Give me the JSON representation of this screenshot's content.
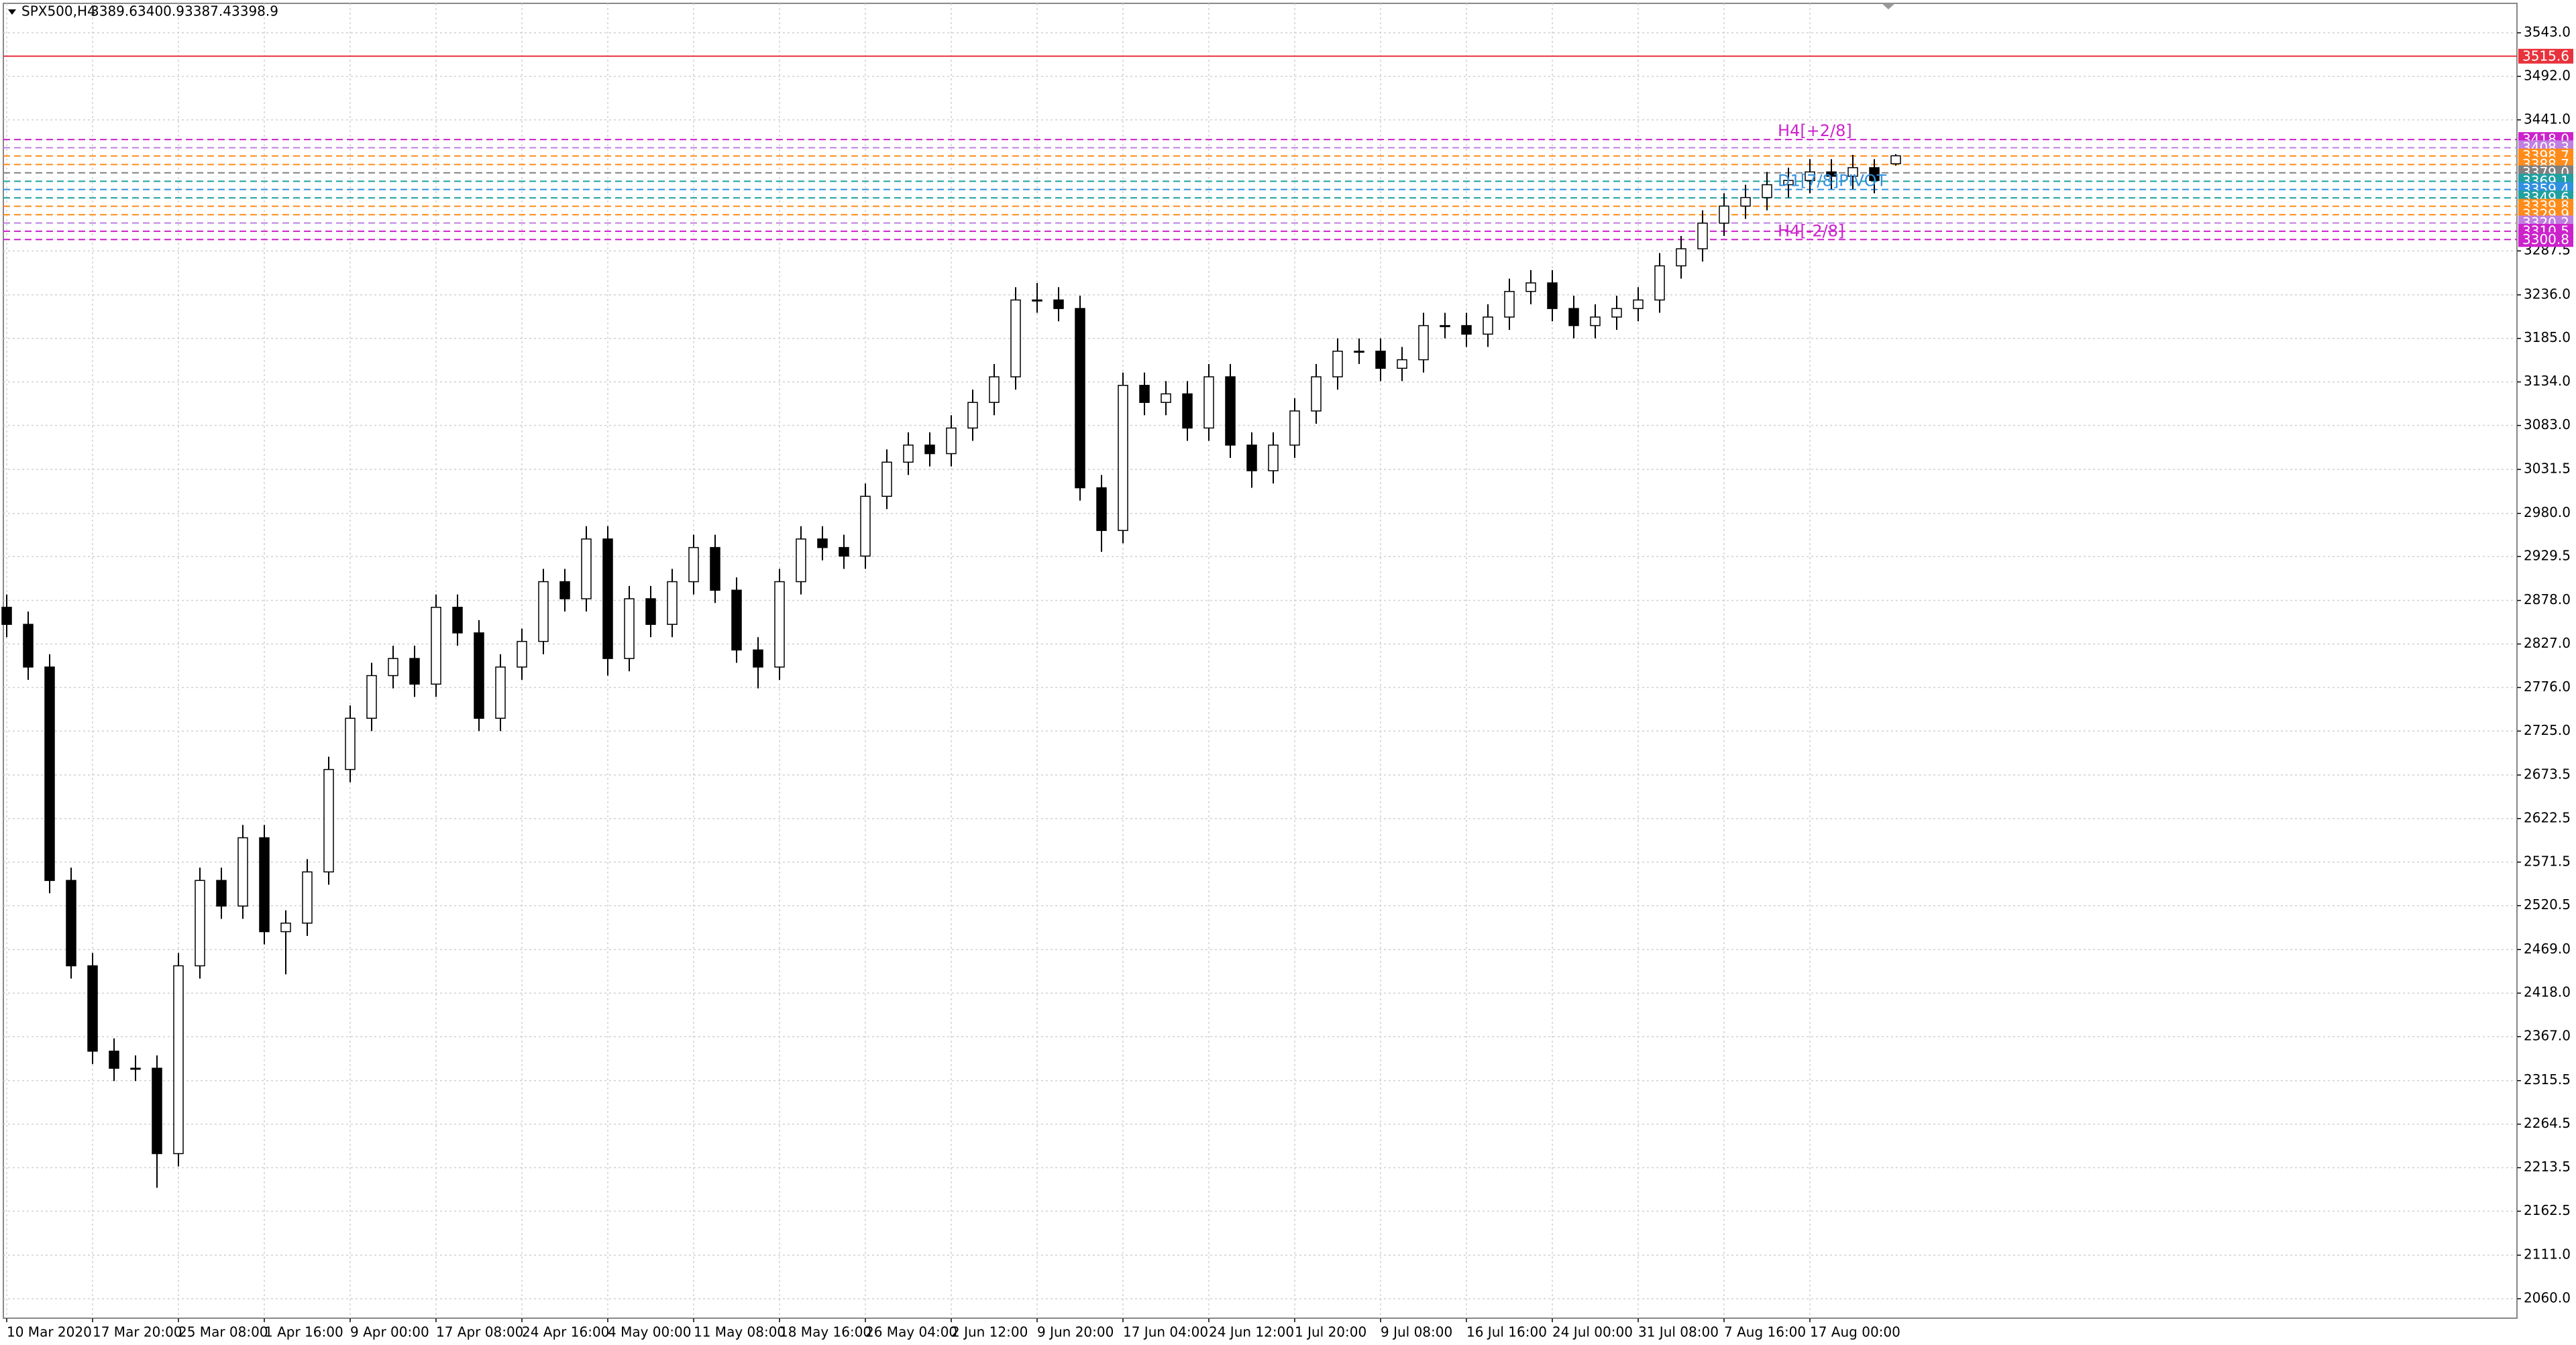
{
  "chart_data": {
    "type": "candlestick",
    "title": "SPX500,H4",
    "up_color": "#ffffff",
    "down_color": "#000000",
    "edge_color": "#000000",
    "grid": true,
    "categories": [
      "10 Mar 2020",
      null,
      null,
      null,
      "17 Mar 20:00",
      null,
      null,
      null,
      "25 Mar 08:00",
      null,
      null,
      null,
      "1 Apr 16:00",
      null,
      null,
      null,
      "9 Apr 00:00",
      null,
      null,
      null,
      "17 Apr 08:00",
      null,
      null,
      null,
      "24 Apr 16:00",
      null,
      null,
      null,
      "4 May 00:00",
      null,
      null,
      null,
      "11 May 08:00",
      null,
      null,
      null,
      "18 May 16:00",
      null,
      null,
      null,
      "26 May 04:00",
      null,
      null,
      null,
      "2 Jun 12:00",
      null,
      null,
      null,
      "9 Jun 20:00",
      null,
      null,
      null,
      "17 Jun 04:00",
      null,
      null,
      null,
      "24 Jun 12:00",
      null,
      null,
      null,
      "1 Jul 20:00",
      null,
      null,
      null,
      "9 Jul 08:00",
      null,
      null,
      null,
      "16 Jul 16:00",
      null,
      null,
      null,
      "24 Jul 00:00",
      null,
      null,
      null,
      "31 Jul 08:00",
      null,
      null,
      null,
      "7 Aug 16:00",
      null,
      null,
      null,
      "17 Aug 00:00",
      null,
      null,
      null,
      null
    ],
    "open": [
      2870,
      2850,
      2800,
      2550,
      2450,
      2350,
      2330,
      2330,
      2230,
      2450,
      2550,
      2520,
      2600,
      2490,
      2500,
      2560,
      2680,
      2740,
      2790,
      2810,
      2780,
      2870,
      2840,
      2740,
      2800,
      2830,
      2900,
      2880,
      2950,
      2810,
      2880,
      2850,
      2900,
      2940,
      2890,
      2820,
      2800,
      2900,
      2950,
      2940,
      2930,
      3000,
      3040,
      3060,
      3050,
      3080,
      3110,
      3140,
      3230,
      3230,
      3220,
      3010,
      2960,
      3130,
      3110,
      3120,
      3080,
      3140,
      3060,
      3030,
      3060,
      3100,
      3140,
      3170,
      3170,
      3150,
      3160,
      3200,
      3200,
      3190,
      3210,
      3240,
      3250,
      3220,
      3200,
      3210,
      3220,
      3230,
      3270,
      3290,
      3320,
      3340,
      3350,
      3365,
      3370,
      3380,
      3375,
      3385,
      3389.6
    ],
    "high": [
      2885,
      2865,
      2815,
      2565,
      2465,
      2365,
      2345,
      2345,
      2465,
      2565,
      2565,
      2615,
      2615,
      2515,
      2575,
      2695,
      2755,
      2805,
      2825,
      2825,
      2885,
      2885,
      2855,
      2815,
      2845,
      2915,
      2915,
      2965,
      2965,
      2895,
      2895,
      2915,
      2955,
      2955,
      2905,
      2835,
      2915,
      2965,
      2965,
      2955,
      3015,
      3055,
      3075,
      3075,
      3095,
      3125,
      3155,
      3245,
      3250,
      3245,
      3235,
      3025,
      3145,
      3145,
      3135,
      3135,
      3155,
      3155,
      3075,
      3075,
      3115,
      3155,
      3185,
      3185,
      3185,
      3175,
      3215,
      3215,
      3215,
      3225,
      3255,
      3265,
      3265,
      3235,
      3225,
      3235,
      3245,
      3285,
      3305,
      3335,
      3355,
      3365,
      3380,
      3385,
      3395,
      3395,
      3400,
      3395,
      3400.9
    ],
    "low": [
      2835,
      2785,
      2535,
      2435,
      2335,
      2315,
      2315,
      2190,
      2215,
      2435,
      2505,
      2505,
      2475,
      2440,
      2485,
      2545,
      2665,
      2725,
      2775,
      2765,
      2765,
      2825,
      2725,
      2725,
      2785,
      2815,
      2865,
      2865,
      2790,
      2795,
      2835,
      2835,
      2885,
      2875,
      2805,
      2775,
      2785,
      2885,
      2925,
      2915,
      2915,
      2985,
      3025,
      3035,
      3035,
      3065,
      3095,
      3125,
      3215,
      3205,
      2995,
      2935,
      2945,
      3095,
      3095,
      3065,
      3065,
      3045,
      3010,
      3015,
      3045,
      3085,
      3125,
      3155,
      3135,
      3135,
      3145,
      3185,
      3175,
      3175,
      3195,
      3225,
      3205,
      3185,
      3185,
      3195,
      3205,
      3215,
      3255,
      3275,
      3305,
      3325,
      3335,
      3350,
      3355,
      3360,
      3360,
      3355,
      3387.4
    ],
    "close": [
      2850,
      2800,
      2550,
      2450,
      2350,
      2330,
      2330,
      2230,
      2450,
      2550,
      2520,
      2600,
      2490,
      2500,
      2560,
      2680,
      2740,
      2790,
      2810,
      2780,
      2870,
      2840,
      2740,
      2800,
      2830,
      2900,
      2880,
      2950,
      2810,
      2880,
      2850,
      2900,
      2940,
      2890,
      2820,
      2800,
      2900,
      2950,
      2940,
      2930,
      3000,
      3040,
      3060,
      3050,
      3080,
      3110,
      3140,
      3230,
      3230,
      3220,
      3010,
      2960,
      3130,
      3110,
      3120,
      3080,
      3140,
      3060,
      3030,
      3060,
      3100,
      3140,
      3170,
      3170,
      3150,
      3160,
      3200,
      3200,
      3190,
      3210,
      3240,
      3250,
      3220,
      3200,
      3210,
      3220,
      3230,
      3270,
      3290,
      3320,
      3340,
      3350,
      3365,
      3370,
      3380,
      3375,
      3385,
      3370,
      3398.9
    ],
    "ylim": [
      2037.2,
      3577.5
    ],
    "yticks": [
      {
        "value": 3543,
        "label": "3543.0"
      },
      {
        "value": 3492,
        "label": "3492.0"
      },
      {
        "value": 3441,
        "label": "3441.0"
      },
      {
        "value": 3287.5,
        "label": "3287.5"
      },
      {
        "value": 3236,
        "label": "3236.0"
      },
      {
        "value": 3185,
        "label": "3185.0"
      },
      {
        "value": 3134,
        "label": "3134.0"
      },
      {
        "value": 3083,
        "label": "3083.0"
      },
      {
        "value": 3031.5,
        "label": "3031.5"
      },
      {
        "value": 2980,
        "label": "2980.0"
      },
      {
        "value": 2929.5,
        "label": "2929.5"
      },
      {
        "value": 2878,
        "label": "2878.0"
      },
      {
        "value": 2827,
        "label": "2827.0"
      },
      {
        "value": 2776,
        "label": "2776.0"
      },
      {
        "value": 2725,
        "label": "2725.0"
      },
      {
        "value": 2673.5,
        "label": "2673.5"
      },
      {
        "value": 2622.5,
        "label": "2622.5"
      },
      {
        "value": 2571.5,
        "label": "2571.5"
      },
      {
        "value": 2520.5,
        "label": "2520.5"
      },
      {
        "value": 2469,
        "label": "2469.0"
      },
      {
        "value": 2418,
        "label": "2418.0"
      },
      {
        "value": 2367,
        "label": "2367.0"
      },
      {
        "value": 2315.5,
        "label": "2315.5"
      },
      {
        "value": 2264.5,
        "label": "2264.5"
      },
      {
        "value": 2213.5,
        "label": "2213.5"
      },
      {
        "value": 2162.5,
        "label": "2162.5"
      },
      {
        "value": 2111,
        "label": "2111.0"
      },
      {
        "value": 2060,
        "label": "2060.0"
      }
    ],
    "levels": [
      {
        "value": 3515.6,
        "label": "3515.6",
        "color": "#e8323c",
        "dashed": false
      },
      {
        "value": 3418,
        "label": "3418.0",
        "color": "#cc22cc",
        "dashed": true,
        "text": "H4[+2/8]"
      },
      {
        "value": 3408.3,
        "label": "3408.3",
        "color": "#c080e0",
        "dashed": true
      },
      {
        "value": 3398.7,
        "label": "3398.7",
        "color": "#ff8c1a",
        "dashed": true
      },
      {
        "value": 3388.7,
        "label": "3388.7",
        "color": "#ff8c1a",
        "dashed": true
      },
      {
        "value": 3379,
        "label": "3379.0",
        "color": "#808080",
        "dashed": true
      },
      {
        "value": 3369.1,
        "label": "3369.1",
        "color": "#20a0a0",
        "dashed": true
      },
      {
        "value": 3359.4,
        "label": "3359.4",
        "color": "#3090e0",
        "dashed": true,
        "text": "D1[7/8]PIVOT"
      },
      {
        "value": 3349.6,
        "label": "3349.6",
        "color": "#20a0a0",
        "dashed": true
      },
      {
        "value": 3339.8,
        "label": "3339.8",
        "color": "#ff8c1a",
        "dashed": true
      },
      {
        "value": 3329.9,
        "label": "3329.9",
        "color": "#ff8c1a",
        "dashed": true
      },
      {
        "value": 3320.2,
        "label": "3320.2",
        "color": "#c080e0",
        "dashed": true
      },
      {
        "value": 3310.5,
        "label": "3310.5",
        "color": "#cc22cc",
        "dashed": true
      },
      {
        "value": 3300.8,
        "label": "3300.8",
        "color": "#cc22cc",
        "dashed": true,
        "text": "H4[-2/8]"
      }
    ]
  }
}
